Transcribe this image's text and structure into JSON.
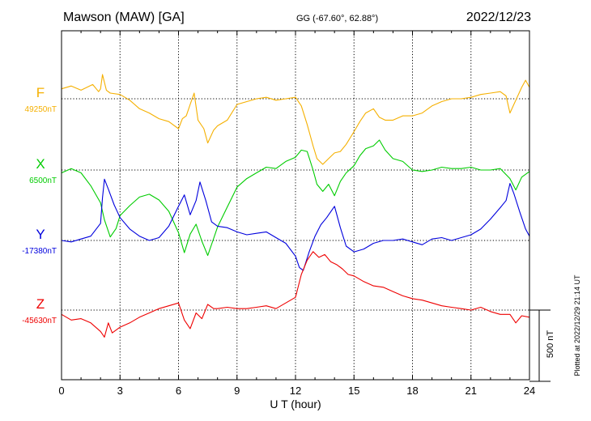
{
  "header": {
    "station": "Mawson (MAW)  [GA]",
    "coords": "GG (-67.60°,  62.88°)",
    "date": "2022/12/23"
  },
  "side_note": "Plotted at 2022/12/29 21:14 UT",
  "chart_data": {
    "type": "line",
    "xlabel": "U T (hour)",
    "xlim": [
      0,
      24
    ],
    "xticks": [
      "0",
      "3",
      "6",
      "9",
      "12",
      "15",
      "18",
      "21",
      "24"
    ],
    "scale_label": "500 nT",
    "scale_nT": 500,
    "grid": true,
    "series": [
      {
        "name": "F",
        "baseline_label": "49250nT",
        "baseline_nT": 49250,
        "color": "#f5b000",
        "x": [
          0,
          0.5,
          1,
          1.3,
          1.6,
          1.9,
          2.0,
          2.1,
          2.3,
          2.5,
          3,
          3.5,
          4,
          4.5,
          5,
          5.5,
          6,
          6.2,
          6.4,
          6.6,
          6.8,
          7.0,
          7.3,
          7.5,
          7.8,
          8,
          8.5,
          9,
          9.5,
          10,
          10.5,
          11,
          11.5,
          12,
          12.3,
          12.6,
          12.9,
          13.1,
          13.4,
          13.7,
          14.0,
          14.3,
          14.6,
          15,
          15.3,
          15.6,
          16,
          16.3,
          16.6,
          17,
          17.5,
          18,
          18.5,
          19,
          19.5,
          20,
          20.5,
          21,
          21.5,
          22,
          22.5,
          22.8,
          23,
          23.3,
          23.6,
          23.8,
          24
        ],
        "y": [
          49320,
          49340,
          49310,
          49330,
          49350,
          49300,
          49320,
          49420,
          49310,
          49290,
          49280,
          49240,
          49180,
          49150,
          49110,
          49090,
          49040,
          49110,
          49130,
          49210,
          49290,
          49100,
          49040,
          48940,
          49030,
          49060,
          49100,
          49210,
          49230,
          49250,
          49260,
          49240,
          49250,
          49260,
          49200,
          49070,
          48920,
          48830,
          48790,
          48830,
          48870,
          48880,
          48930,
          49020,
          49090,
          49150,
          49180,
          49120,
          49100,
          49100,
          49130,
          49130,
          49150,
          49200,
          49230,
          49250,
          49250,
          49260,
          49280,
          49290,
          49300,
          49270,
          49150,
          49240,
          49330,
          49380,
          49330
        ]
      },
      {
        "name": "X",
        "baseline_label": "6500nT",
        "baseline_nT": 6500,
        "color": "#00cc00",
        "x": [
          0,
          0.5,
          1,
          1.5,
          2,
          2.2,
          2.5,
          2.8,
          3,
          3.5,
          4,
          4.5,
          5,
          5.5,
          6,
          6.3,
          6.6,
          6.9,
          7.2,
          7.5,
          7.8,
          8,
          8.5,
          9,
          9.5,
          10,
          10.5,
          11,
          11.5,
          12,
          12.3,
          12.6,
          12.9,
          13.1,
          13.4,
          13.7,
          14,
          14.3,
          14.6,
          15,
          15.3,
          15.6,
          16,
          16.3,
          16.6,
          17,
          17.5,
          18,
          18.5,
          19,
          19.5,
          20,
          20.5,
          21,
          21.5,
          22,
          22.5,
          23,
          23.3,
          23.6,
          24
        ],
        "y": [
          6480,
          6510,
          6480,
          6390,
          6270,
          6150,
          6030,
          6090,
          6180,
          6250,
          6310,
          6330,
          6290,
          6210,
          6060,
          5920,
          6050,
          6120,
          6000,
          5900,
          6020,
          6100,
          6240,
          6380,
          6440,
          6480,
          6520,
          6510,
          6560,
          6590,
          6640,
          6630,
          6500,
          6400,
          6350,
          6400,
          6320,
          6420,
          6480,
          6530,
          6600,
          6650,
          6670,
          6710,
          6640,
          6580,
          6560,
          6500,
          6490,
          6500,
          6520,
          6510,
          6510,
          6520,
          6500,
          6500,
          6510,
          6440,
          6360,
          6450,
          6490
        ]
      },
      {
        "name": "Y",
        "baseline_label": "-17380nT",
        "baseline_nT": -17380,
        "color": "#0000dd",
        "x": [
          0,
          0.5,
          1,
          1.5,
          2,
          2.1,
          2.2,
          2.4,
          2.7,
          3,
          3.5,
          4,
          4.5,
          5,
          5.5,
          6,
          6.3,
          6.6,
          6.9,
          7.1,
          7.4,
          7.7,
          8,
          8.5,
          9,
          9.5,
          10,
          10.5,
          11,
          11.5,
          12,
          12.2,
          12.4,
          12.7,
          13,
          13.3,
          13.6,
          14,
          14.3,
          14.6,
          15,
          15.5,
          16,
          16.5,
          17,
          17.5,
          18,
          18.5,
          19,
          19.5,
          20,
          20.5,
          21,
          21.5,
          22,
          22.5,
          22.8,
          23,
          23.2,
          23.5,
          23.8,
          24
        ],
        "y": [
          -17380,
          -17390,
          -17370,
          -17350,
          -17260,
          -17080,
          -16950,
          -17020,
          -17130,
          -17220,
          -17300,
          -17350,
          -17380,
          -17360,
          -17280,
          -17140,
          -17060,
          -17200,
          -17100,
          -16970,
          -17100,
          -17250,
          -17280,
          -17290,
          -17320,
          -17340,
          -17330,
          -17320,
          -17360,
          -17400,
          -17490,
          -17570,
          -17590,
          -17460,
          -17350,
          -17270,
          -17220,
          -17140,
          -17290,
          -17420,
          -17460,
          -17440,
          -17400,
          -17380,
          -17380,
          -17370,
          -17390,
          -17410,
          -17370,
          -17360,
          -17380,
          -17360,
          -17340,
          -17300,
          -17230,
          -17150,
          -17100,
          -16980,
          -17050,
          -17180,
          -17300,
          -17350
        ]
      },
      {
        "name": "Z",
        "baseline_label": "-45630nT",
        "baseline_nT": -45630,
        "color": "#ee0000",
        "x": [
          0,
          0.5,
          1,
          1.5,
          2,
          2.2,
          2.4,
          2.6,
          3,
          3.5,
          4,
          4.5,
          5,
          5.5,
          6,
          6.3,
          6.6,
          6.9,
          7.2,
          7.5,
          7.8,
          8,
          8.5,
          9,
          9.5,
          10,
          10.5,
          11,
          11.5,
          12,
          12.3,
          12.6,
          12.9,
          13.2,
          13.5,
          13.8,
          14.1,
          14.4,
          14.7,
          15,
          15.5,
          16,
          16.5,
          17,
          17.5,
          18,
          18.5,
          19,
          19.5,
          20,
          20.5,
          21,
          21.5,
          22,
          22.5,
          23,
          23.3,
          23.6,
          24
        ],
        "y": [
          -45660,
          -45700,
          -45690,
          -45720,
          -45780,
          -45820,
          -45720,
          -45790,
          -45750,
          -45720,
          -45680,
          -45650,
          -45620,
          -45600,
          -45580,
          -45700,
          -45760,
          -45650,
          -45690,
          -45590,
          -45620,
          -45620,
          -45610,
          -45620,
          -45620,
          -45610,
          -45600,
          -45620,
          -45580,
          -45540,
          -45380,
          -45280,
          -45220,
          -45260,
          -45240,
          -45290,
          -45310,
          -45340,
          -45380,
          -45390,
          -45430,
          -45460,
          -45470,
          -45500,
          -45530,
          -45550,
          -45560,
          -45580,
          -45600,
          -45610,
          -45620,
          -45630,
          -45610,
          -45640,
          -45660,
          -45660,
          -45720,
          -45670,
          -45680
        ]
      }
    ]
  }
}
